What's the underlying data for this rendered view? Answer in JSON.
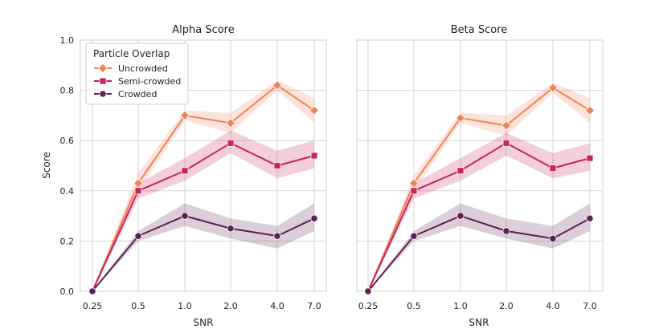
{
  "chart_data": {
    "type": "line",
    "x_categories": [
      "0.25",
      "0.5",
      "1.0",
      "2.0",
      "4.0",
      "7.0"
    ],
    "xlabel": "SNR",
    "ylabel": "Score",
    "ylim": [
      0.0,
      1.0
    ],
    "yticks": [
      "0.0",
      "0.2",
      "0.4",
      "0.6",
      "0.8",
      "1.0"
    ],
    "grid": true,
    "legend": {
      "title": "Particle Overlap",
      "placement": "top-left",
      "entries": [
        "Uncrowded",
        "Semi-crowded",
        "Crowded"
      ]
    },
    "colors": {
      "Uncrowded": "#f0825a",
      "Semi-crowded": "#c8245a",
      "Crowded": "#5e1f52"
    },
    "markers": {
      "Uncrowded": "diamond",
      "Semi-crowded": "square",
      "Crowded": "circle"
    },
    "panels": [
      {
        "title": "Alpha Score",
        "series": [
          {
            "name": "Uncrowded",
            "values": [
              0.0,
              0.43,
              0.7,
              0.67,
              0.82,
              0.72
            ],
            "lower": [
              0.0,
              0.4,
              0.68,
              0.63,
              0.8,
              0.67
            ],
            "upper": [
              0.0,
              0.47,
              0.72,
              0.71,
              0.84,
              0.77
            ]
          },
          {
            "name": "Semi-crowded",
            "values": [
              0.0,
              0.4,
              0.48,
              0.59,
              0.5,
              0.54
            ],
            "lower": [
              0.0,
              0.37,
              0.44,
              0.55,
              0.45,
              0.49
            ],
            "upper": [
              0.0,
              0.43,
              0.53,
              0.64,
              0.56,
              0.6
            ]
          },
          {
            "name": "Crowded",
            "values": [
              0.0,
              0.22,
              0.3,
              0.25,
              0.22,
              0.29
            ],
            "lower": [
              0.0,
              0.2,
              0.26,
              0.21,
              0.17,
              0.24
            ],
            "upper": [
              0.0,
              0.24,
              0.35,
              0.29,
              0.26,
              0.35
            ]
          }
        ]
      },
      {
        "title": "Beta Score",
        "series": [
          {
            "name": "Uncrowded",
            "values": [
              0.0,
              0.43,
              0.69,
              0.66,
              0.81,
              0.72
            ],
            "lower": [
              0.0,
              0.4,
              0.67,
              0.62,
              0.79,
              0.67
            ],
            "upper": [
              0.0,
              0.46,
              0.71,
              0.7,
              0.83,
              0.77
            ]
          },
          {
            "name": "Semi-crowded",
            "values": [
              0.0,
              0.4,
              0.48,
              0.59,
              0.49,
              0.53
            ],
            "lower": [
              0.0,
              0.37,
              0.44,
              0.54,
              0.45,
              0.48
            ],
            "upper": [
              0.0,
              0.43,
              0.53,
              0.63,
              0.55,
              0.59
            ]
          },
          {
            "name": "Crowded",
            "values": [
              0.0,
              0.22,
              0.3,
              0.24,
              0.21,
              0.29
            ],
            "lower": [
              0.0,
              0.2,
              0.26,
              0.21,
              0.17,
              0.24
            ],
            "upper": [
              0.0,
              0.24,
              0.35,
              0.29,
              0.26,
              0.35
            ]
          }
        ]
      }
    ]
  }
}
